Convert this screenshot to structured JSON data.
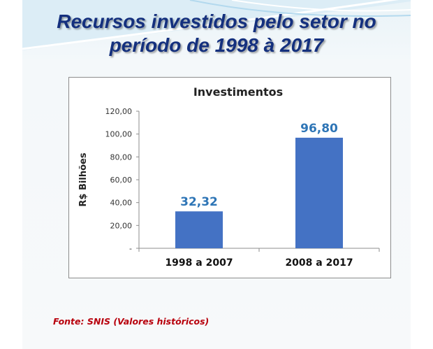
{
  "slide": {
    "title_line1": "Recursos investidos pelo setor no",
    "title_line2": "período de 1998 à 2017",
    "source": "Fonte: SNIS  (Valores históricos)",
    "colors": {
      "title": "#14307e",
      "bar": "#4472c4",
      "data_label": "#2e75b6",
      "source": "#b8000c"
    }
  },
  "chart_data": {
    "type": "bar",
    "title": "Investimentos",
    "ylabel": "R$ Bilhões",
    "xlabel": "",
    "categories": [
      "1998 a 2007",
      "2008 a 2017"
    ],
    "values": [
      32.32,
      96.8
    ],
    "data_labels": [
      "32,32",
      "96,80"
    ],
    "ylim": [
      0,
      120
    ],
    "yticks": [
      0,
      20,
      40,
      60,
      80,
      100,
      120
    ],
    "ytick_labels": [
      "-",
      "20,00",
      "40,00",
      "60,00",
      "80,00",
      "100,00",
      "120,00"
    ],
    "grid": false,
    "legend": "none"
  }
}
